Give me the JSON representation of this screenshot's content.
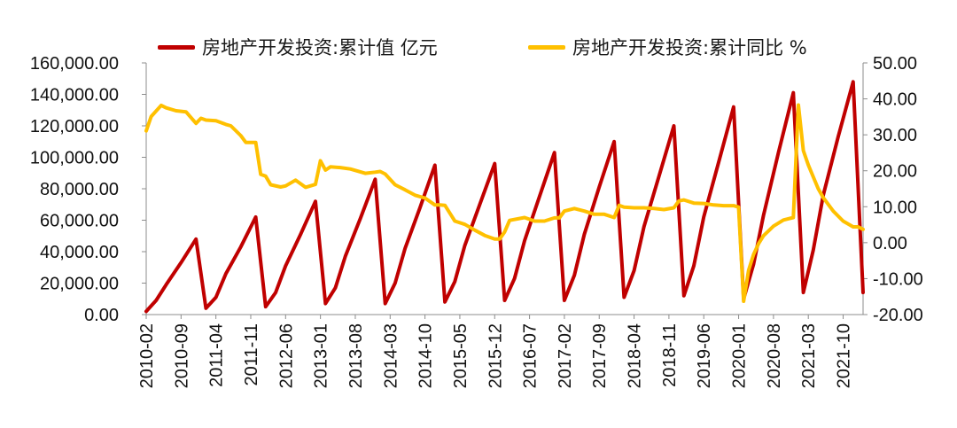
{
  "chart_data": {
    "type": "line",
    "legend_position": "top",
    "grid": false,
    "colors": {
      "series1": "#C00000",
      "series2": "#FFC000"
    },
    "x_tick_labels": [
      "2010-02",
      "2010-09",
      "2011-04",
      "2011-11",
      "2012-06",
      "2013-01",
      "2013-08",
      "2014-03",
      "2014-10",
      "2015-05",
      "2015-12",
      "2016-07",
      "2017-02",
      "2017-09",
      "2018-04",
      "2018-11",
      "2019-06",
      "2020-01",
      "2020-08",
      "2021-03",
      "2021-10"
    ],
    "y_left": {
      "min": 0,
      "max": 160000,
      "step": 20000,
      "tick_labels": [
        "0.00",
        "20,000.00",
        "40,000.00",
        "60,000.00",
        "80,000.00",
        "100,000.00",
        "120,000.00",
        "140,000.00",
        "160,000.00"
      ]
    },
    "y_right": {
      "min": -20,
      "max": 50,
      "step": 10,
      "tick_labels": [
        "-20.00",
        "-10.00",
        "0.00",
        "10.00",
        "20.00",
        "30.00",
        "40.00",
        "50.00"
      ]
    },
    "series": [
      {
        "name": "房地产开发投资:累计值 亿元",
        "axis": "left",
        "x": [
          "2010-02",
          "2010-04",
          "2010-06",
          "2010-09",
          "2010-12",
          "2011-02",
          "2011-04",
          "2011-06",
          "2011-09",
          "2011-12",
          "2012-02",
          "2012-04",
          "2012-06",
          "2012-09",
          "2012-12",
          "2013-02",
          "2013-04",
          "2013-06",
          "2013-09",
          "2013-12",
          "2014-02",
          "2014-04",
          "2014-06",
          "2014-09",
          "2014-12",
          "2015-02",
          "2015-04",
          "2015-06",
          "2015-09",
          "2015-12",
          "2016-02",
          "2016-04",
          "2016-06",
          "2016-09",
          "2016-12",
          "2017-02",
          "2017-04",
          "2017-06",
          "2017-09",
          "2017-12",
          "2018-02",
          "2018-04",
          "2018-06",
          "2018-09",
          "2018-12",
          "2019-02",
          "2019-04",
          "2019-06",
          "2019-09",
          "2019-12",
          "2020-02",
          "2020-04",
          "2020-06",
          "2020-09",
          "2020-12",
          "2021-02",
          "2021-04",
          "2021-06",
          "2021-09",
          "2021-12",
          "2022-02"
        ],
        "values": [
          2000,
          9000,
          19000,
          33000,
          48000,
          4000,
          11000,
          26000,
          43000,
          62000,
          5000,
          14000,
          31000,
          51000,
          72000,
          7000,
          17000,
          37000,
          61000,
          86000,
          7000,
          20000,
          42000,
          68000,
          95000,
          8000,
          21000,
          44000,
          70000,
          96000,
          9000,
          23000,
          47000,
          75000,
          103000,
          9000,
          25000,
          51000,
          81000,
          110000,
          11000,
          28000,
          56000,
          88000,
          120000,
          12000,
          31000,
          62000,
          97000,
          132000,
          10000,
          32000,
          63000,
          103000,
          141000,
          14000,
          41000,
          76000,
          113000,
          148000,
          14000
        ]
      },
      {
        "name": "房地产开发投资:累计同比 %",
        "axis": "right",
        "x": [
          "2010-02",
          "2010-03",
          "2010-05",
          "2010-06",
          "2010-08",
          "2010-10",
          "2010-12",
          "2011-01",
          "2011-02",
          "2011-04",
          "2011-06",
          "2011-07",
          "2011-09",
          "2011-10",
          "2011-11",
          "2011-12",
          "2012-01",
          "2012-02",
          "2012-03",
          "2012-05",
          "2012-06",
          "2012-08",
          "2012-10",
          "2012-12",
          "2013-01",
          "2013-02",
          "2013-03",
          "2013-05",
          "2013-07",
          "2013-09",
          "2013-10",
          "2013-12",
          "2014-01",
          "2014-02",
          "2014-04",
          "2014-06",
          "2014-08",
          "2014-10",
          "2014-12",
          "2015-01",
          "2015-02",
          "2015-04",
          "2015-06",
          "2015-08",
          "2015-10",
          "2015-12",
          "2016-01",
          "2016-02",
          "2016-03",
          "2016-06",
          "2016-08",
          "2016-10",
          "2016-12",
          "2017-01",
          "2017-02",
          "2017-04",
          "2017-06",
          "2017-08",
          "2017-10",
          "2017-12",
          "2018-01",
          "2018-02",
          "2018-04",
          "2018-06",
          "2018-08",
          "2018-10",
          "2018-12",
          "2019-01",
          "2019-02",
          "2019-04",
          "2019-06",
          "2019-08",
          "2019-10",
          "2019-12",
          "2020-01",
          "2020-02",
          "2020-03",
          "2020-04",
          "2020-05",
          "2020-06",
          "2020-08",
          "2020-10",
          "2020-12",
          "2021-01",
          "2021-02",
          "2021-03",
          "2021-04",
          "2021-05",
          "2021-06",
          "2021-08",
          "2021-10",
          "2021-12",
          "2022-01",
          "2022-02"
        ],
        "values": [
          31.1,
          35.1,
          38.2,
          37.5,
          36.7,
          36.4,
          33.2,
          34.6,
          34.1,
          33.9,
          32.9,
          32.5,
          29.8,
          27.9,
          27.9,
          27.9,
          19.0,
          18.5,
          16.1,
          15.5,
          15.8,
          17.4,
          15.4,
          16.2,
          22.8,
          20.2,
          21.1,
          20.9,
          20.5,
          19.7,
          19.3,
          19.6,
          19.8,
          19.1,
          16.1,
          14.7,
          13.2,
          12.4,
          10.5,
          10.5,
          10.4,
          6.0,
          5.1,
          3.5,
          2.0,
          1.0,
          1.0,
          3.0,
          6.2,
          7.0,
          6.0,
          6.0,
          6.9,
          6.9,
          8.8,
          9.5,
          8.8,
          7.9,
          7.9,
          7.0,
          10.4,
          9.9,
          9.7,
          9.7,
          9.5,
          9.2,
          9.7,
          11.6,
          11.9,
          11.0,
          10.9,
          10.5,
          10.3,
          10.3,
          9.9,
          -16.3,
          -7.7,
          -3.3,
          -0.3,
          1.9,
          4.6,
          6.3,
          7.0,
          38.3,
          25.6,
          21.6,
          18.3,
          15.0,
          12.5,
          8.8,
          6.0,
          4.4,
          4.4,
          3.7
        ]
      }
    ]
  }
}
